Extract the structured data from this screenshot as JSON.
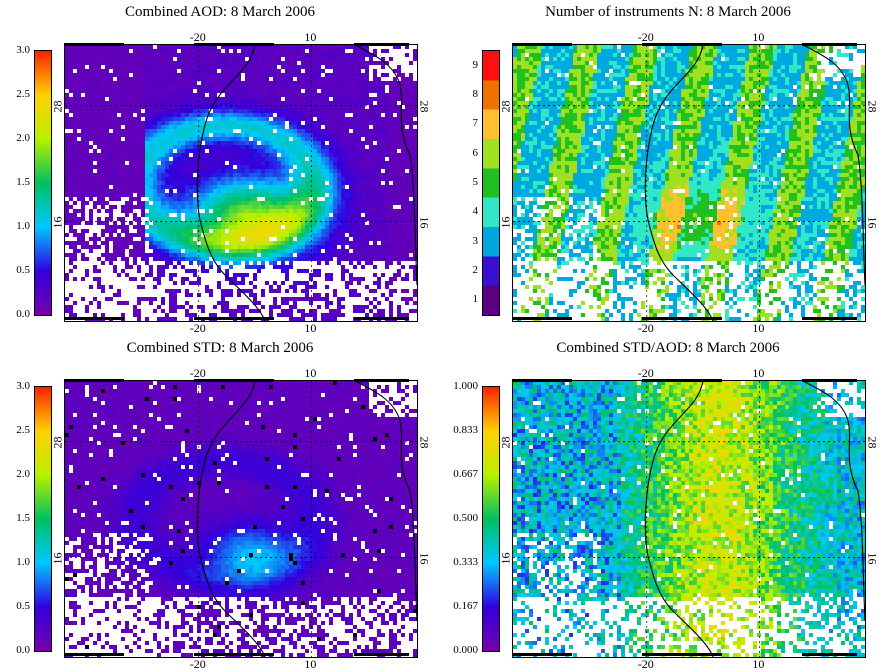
{
  "panels": [
    {
      "title": "Combined AOD:  8 March 2006",
      "colorbar": {
        "type": "continuous",
        "ticks": [
          "0.0",
          "0.5",
          "1.0",
          "1.5",
          "2.0",
          "2.5",
          "3.0"
        ],
        "colors": [
          "#7a00a8",
          "#3000e0",
          "#00c8ff",
          "#00c060",
          "#b8f000",
          "#ffd000",
          "#ff2000"
        ]
      },
      "field": "aod"
    },
    {
      "title": "Number of instruments N:  8 March 2006",
      "colorbar": {
        "type": "discrete",
        "ticks": [
          "1",
          "2",
          "3",
          "4",
          "5",
          "6",
          "7",
          "8",
          "9"
        ],
        "colors": [
          "#5a0080",
          "#3a10d0",
          "#00a8e0",
          "#30e8c8",
          "#20c020",
          "#a0e020",
          "#ffc030",
          "#f07000",
          "#ff1010"
        ]
      },
      "field": "count"
    },
    {
      "title": "Combined STD:  8 March 2006",
      "colorbar": {
        "type": "continuous",
        "ticks": [
          "0.0",
          "0.5",
          "1.0",
          "1.5",
          "2.0",
          "2.5",
          "3.0"
        ],
        "colors": [
          "#7a00a8",
          "#3000e0",
          "#00c8ff",
          "#00c060",
          "#b8f000",
          "#ffd000",
          "#ff2000"
        ]
      },
      "field": "std"
    },
    {
      "title": "Combined STD/AOD:  8 March 2006",
      "colorbar": {
        "type": "continuous",
        "ticks": [
          "0.000",
          "0.167",
          "0.333",
          "0.500",
          "0.667",
          "0.833",
          "1.000"
        ],
        "colors": [
          "#7a00a8",
          "#3000e0",
          "#00c8ff",
          "#00c060",
          "#b8f000",
          "#ffd000",
          "#ff2000"
        ]
      },
      "field": "ratio"
    }
  ],
  "map_axes": {
    "lon_ticks": [
      "-20",
      "10"
    ],
    "lat_ticks": [
      "28",
      "16"
    ]
  }
}
